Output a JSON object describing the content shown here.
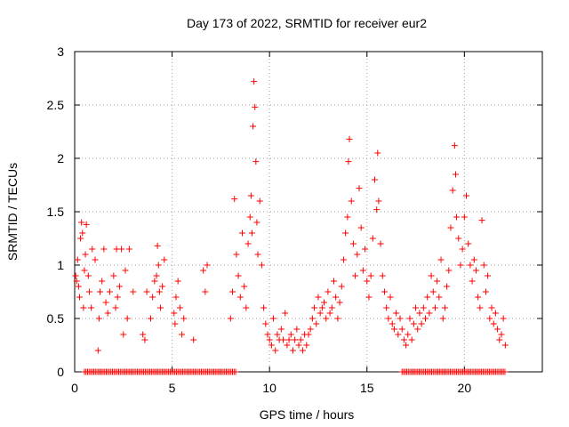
{
  "chart_data": {
    "type": "scatter",
    "title": "Day 173 of 2022, SRMTID for receiver eur2",
    "xlabel": "GPS time / hours",
    "ylabel": "SRMTID / TECUs",
    "xlim": [
      0,
      24
    ],
    "ylim": [
      0,
      3
    ],
    "xticks": [
      0,
      5,
      10,
      15,
      20
    ],
    "xtick_labels": [
      "0",
      "5",
      "10",
      "15",
      "20"
    ],
    "yticks": [
      0,
      0.5,
      1,
      1.5,
      2,
      2.5,
      3
    ],
    "ytick_labels": [
      "0",
      "0.5",
      "1",
      "1.5",
      "2",
      "2.5",
      "3"
    ],
    "grid": true,
    "marker": "+",
    "color": "#ff0000",
    "series": [
      {
        "name": "SRMTID",
        "x": [
          0.05,
          0.1,
          0.15,
          0.2,
          0.25,
          0.3,
          0.35,
          0.4,
          0.45,
          0.5,
          0.55,
          0.6,
          0.7,
          0.75,
          0.85,
          0.9,
          1.05,
          1.2,
          1.25,
          1.3,
          1.4,
          1.5,
          1.6,
          1.7,
          1.8,
          2.0,
          2.1,
          2.15,
          2.2,
          2.3,
          2.4,
          2.5,
          2.6,
          2.7,
          2.8,
          3.0,
          3.5,
          3.6,
          3.7,
          3.9,
          4.0,
          4.1,
          4.2,
          4.25,
          4.3,
          4.35,
          4.4,
          4.5,
          4.6,
          5.1,
          5.15,
          5.2,
          5.3,
          5.4,
          5.5,
          5.6,
          6.1,
          6.6,
          6.7,
          6.8,
          8.0,
          8.1,
          8.2,
          8.3,
          8.4,
          8.5,
          8.6,
          8.7,
          8.8,
          8.9,
          9.0,
          9.05,
          9.1,
          9.15,
          9.2,
          9.25,
          9.3,
          9.35,
          9.4,
          9.5,
          9.6,
          9.7,
          9.8,
          9.9,
          10.0,
          10.1,
          10.2,
          10.3,
          10.4,
          10.5,
          10.6,
          10.7,
          10.8,
          10.9,
          11.0,
          11.1,
          11.2,
          11.3,
          11.4,
          11.5,
          11.6,
          11.7,
          11.8,
          11.9,
          12.0,
          12.1,
          12.2,
          12.3,
          12.4,
          12.5,
          12.6,
          12.7,
          12.8,
          12.9,
          13.0,
          13.1,
          13.2,
          13.3,
          13.4,
          13.5,
          13.6,
          13.7,
          13.8,
          13.9,
          14.0,
          14.05,
          14.1,
          14.2,
          14.3,
          14.4,
          14.5,
          14.6,
          14.7,
          14.8,
          14.9,
          15.0,
          15.1,
          15.2,
          15.3,
          15.4,
          15.5,
          15.55,
          15.6,
          15.7,
          15.8,
          15.9,
          16.0,
          16.1,
          16.2,
          16.3,
          16.4,
          16.5,
          16.6,
          16.7,
          16.8,
          16.9,
          17.0,
          17.1,
          17.2,
          17.3,
          17.4,
          17.5,
          17.6,
          17.7,
          17.8,
          17.9,
          18.0,
          18.1,
          18.2,
          18.3,
          18.4,
          18.5,
          18.6,
          18.7,
          18.8,
          18.9,
          19.0,
          19.1,
          19.2,
          19.3,
          19.4,
          19.5,
          19.55,
          19.6,
          19.7,
          19.8,
          19.9,
          20.0,
          20.1,
          20.2,
          20.3,
          20.4,
          20.5,
          20.6,
          20.7,
          20.8,
          20.9,
          21.0,
          21.1,
          21.2,
          21.3,
          21.4,
          21.5,
          21.6,
          21.7,
          21.8,
          21.9,
          22.0,
          22.1
        ],
        "y": [
          0.9,
          0.85,
          1.05,
          0.8,
          0.7,
          1.25,
          1.4,
          1.3,
          0.6,
          0.95,
          1.1,
          1.38,
          0.9,
          0.75,
          0.6,
          1.15,
          1.05,
          0.2,
          0.5,
          0.75,
          0.85,
          1.15,
          0.65,
          0.55,
          0.75,
          0.9,
          0.6,
          1.15,
          0.7,
          0.8,
          1.15,
          0.35,
          0.95,
          0.5,
          1.15,
          0.75,
          0.35,
          0.3,
          0.75,
          0.5,
          0.7,
          0.85,
          0.9,
          1.18,
          1.0,
          0.75,
          0.6,
          0.8,
          1.05,
          0.55,
          0.45,
          0.7,
          0.85,
          0.6,
          0.35,
          0.5,
          0.3,
          0.95,
          0.75,
          1.0,
          0.5,
          0.75,
          1.62,
          1.1,
          0.9,
          0.7,
          1.3,
          0.8,
          0.6,
          1.2,
          1.45,
          1.65,
          1.3,
          2.3,
          2.72,
          2.48,
          1.97,
          1.4,
          1.1,
          1.6,
          1.0,
          0.6,
          0.45,
          0.35,
          0.3,
          0.25,
          0.5,
          0.2,
          0.35,
          0.3,
          0.4,
          0.3,
          0.55,
          0.25,
          0.3,
          0.35,
          0.2,
          0.3,
          0.4,
          0.25,
          0.3,
          0.2,
          0.35,
          0.25,
          0.35,
          0.4,
          0.5,
          0.6,
          0.45,
          0.7,
          0.55,
          0.6,
          0.65,
          0.5,
          0.75,
          0.55,
          0.6,
          0.85,
          0.7,
          0.5,
          0.65,
          0.8,
          1.05,
          1.3,
          1.45,
          1.97,
          2.18,
          1.6,
          1.2,
          0.9,
          1.1,
          1.72,
          1.35,
          0.95,
          1.15,
          0.85,
          0.7,
          0.9,
          1.25,
          1.8,
          1.52,
          2.05,
          1.6,
          1.2,
          0.9,
          0.75,
          0.6,
          0.5,
          0.7,
          0.45,
          0.4,
          0.55,
          0.35,
          0.5,
          0.4,
          0.3,
          0.25,
          0.35,
          0.5,
          0.3,
          0.45,
          0.6,
          0.4,
          0.55,
          0.45,
          0.6,
          0.5,
          0.7,
          0.55,
          0.9,
          0.75,
          0.6,
          0.85,
          0.7,
          1.05,
          0.5,
          0.6,
          0.8,
          0.95,
          1.35,
          1.7,
          2.12,
          1.85,
          1.45,
          1.25,
          1.0,
          1.15,
          1.45,
          1.65,
          1.2,
          1.0,
          0.85,
          1.05,
          0.95,
          0.7,
          0.6,
          1.42,
          1.0,
          0.75,
          0.9,
          0.5,
          0.6,
          0.45,
          0.55,
          0.4,
          0.3,
          0.35,
          0.5,
          0.25
        ]
      },
      {
        "name": "zero-level",
        "x_ranges": [
          [
            0.5,
            8.3
          ],
          [
            16.8,
            22.1
          ]
        ],
        "y_value": 0
      }
    ]
  }
}
